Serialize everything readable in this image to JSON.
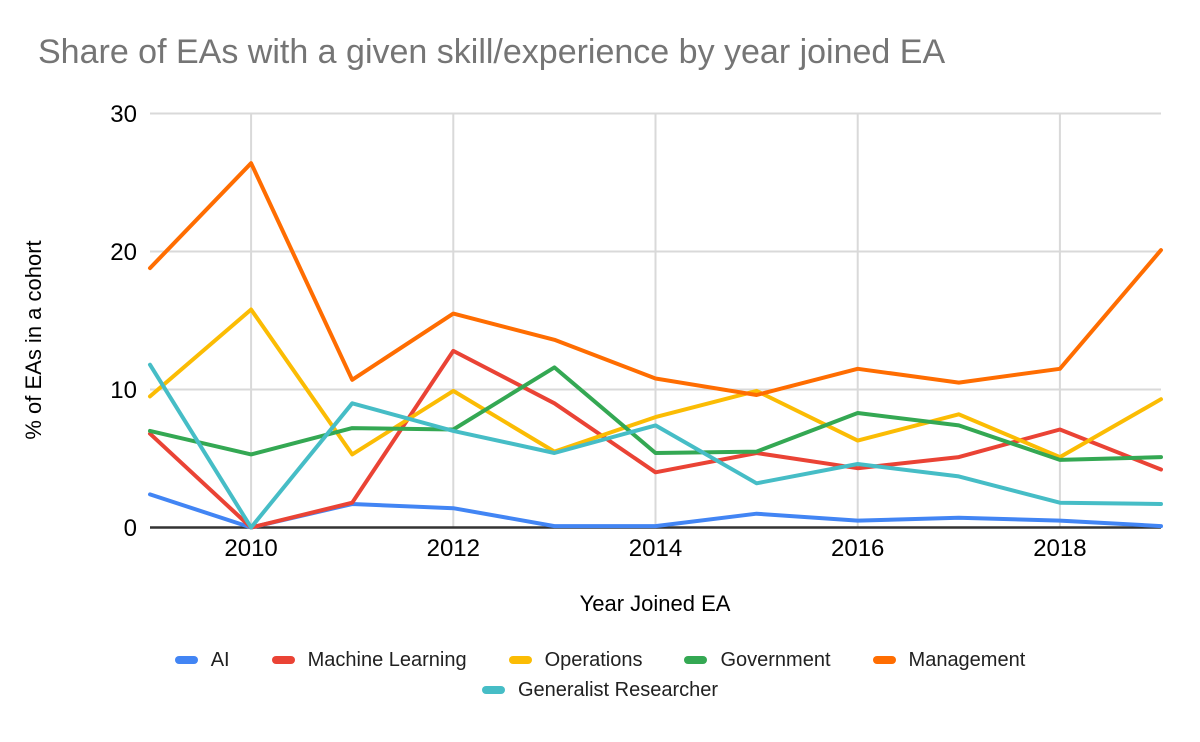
{
  "title": "Share of EAs with a given skill/experience by year joined EA",
  "title_color": "#757575",
  "chart_data": {
    "type": "line",
    "title": "Share of EAs with a given skill/experience by year joined EA",
    "xlabel": "Year Joined EA",
    "ylabel": "% of EAs in a cohort",
    "x": [
      2009,
      2010,
      2011,
      2012,
      2013,
      2014,
      2015,
      2016,
      2017,
      2018,
      2019
    ],
    "xlim": [
      2009,
      2019
    ],
    "ylim": [
      0,
      30
    ],
    "y_ticks": [
      0,
      10,
      20,
      30
    ],
    "x_ticks": [
      2010,
      2012,
      2014,
      2016,
      2018
    ],
    "grid": true,
    "legend_position": "bottom",
    "legend_row_break": 5,
    "series": [
      {
        "name": "AI",
        "color": "#4285F4",
        "values": [
          2.4,
          0,
          1.7,
          1.4,
          0.1,
          0.1,
          1.0,
          0.5,
          0.7,
          0.5,
          0.1
        ]
      },
      {
        "name": "Machine Learning",
        "color": "#EA4335",
        "values": [
          6.8,
          0,
          1.8,
          12.8,
          9.0,
          4.0,
          5.4,
          4.3,
          5.1,
          7.1,
          4.2
        ]
      },
      {
        "name": "Operations",
        "color": "#FBBC04",
        "values": [
          9.5,
          15.8,
          5.3,
          9.9,
          5.5,
          8.0,
          9.9,
          6.3,
          8.2,
          5.1,
          9.3
        ]
      },
      {
        "name": "Government",
        "color": "#34A853",
        "values": [
          7.0,
          5.3,
          7.2,
          7.1,
          11.6,
          5.4,
          5.5,
          8.3,
          7.4,
          4.9,
          5.1
        ]
      },
      {
        "name": "Management",
        "color": "#FF6D01",
        "values": [
          18.8,
          26.4,
          10.7,
          15.5,
          13.6,
          10.8,
          9.6,
          11.5,
          10.5,
          11.5,
          20.1
        ]
      },
      {
        "name": "Generalist Researcher",
        "color": "#46BDC6",
        "values": [
          11.8,
          0,
          9.0,
          7.0,
          5.4,
          7.4,
          3.2,
          4.6,
          3.7,
          1.8,
          1.7
        ]
      }
    ]
  },
  "style": {
    "gridline_color": "#d9d9d9",
    "axis_line_color": "#333333",
    "tick_label_color": "#000000",
    "axis_title_color": "#000000",
    "legend_text_color": "#212121"
  }
}
